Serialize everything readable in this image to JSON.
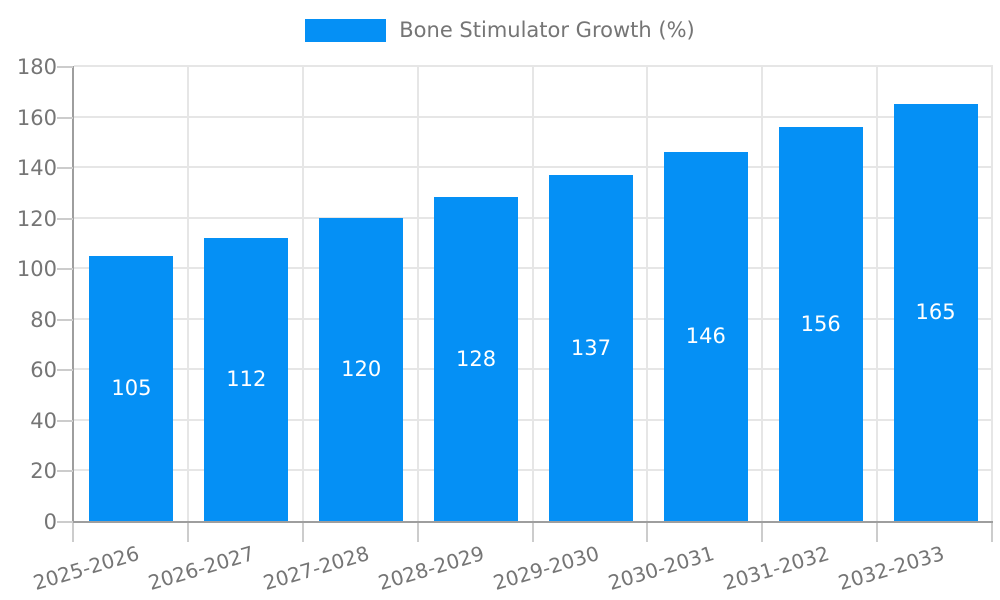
{
  "legend": {
    "label": "Bone Stimulator Growth (%)"
  },
  "colors": {
    "bar": "#0590F5",
    "bar_label": "#ffffff",
    "axis_line": "#9e9e9e",
    "gridline": "#e6e6e6",
    "tick": "#cccccc",
    "text": "#757575"
  },
  "chart_data": {
    "type": "bar",
    "title": "Bone Stimulator Growth (%)",
    "categories": [
      "2025-2026",
      "2026-2027",
      "2027-2028",
      "2028-2029",
      "2029-2030",
      "2030-2031",
      "2031-2032",
      "2032-2033"
    ],
    "values": [
      105,
      112,
      120,
      128,
      137,
      146,
      156,
      165
    ],
    "xlabel": "",
    "ylabel": "",
    "ylim": [
      0,
      180
    ],
    "ytick_step": 20,
    "grid": "on",
    "legend_position": "top",
    "bar_value_labels_inside": true
  }
}
